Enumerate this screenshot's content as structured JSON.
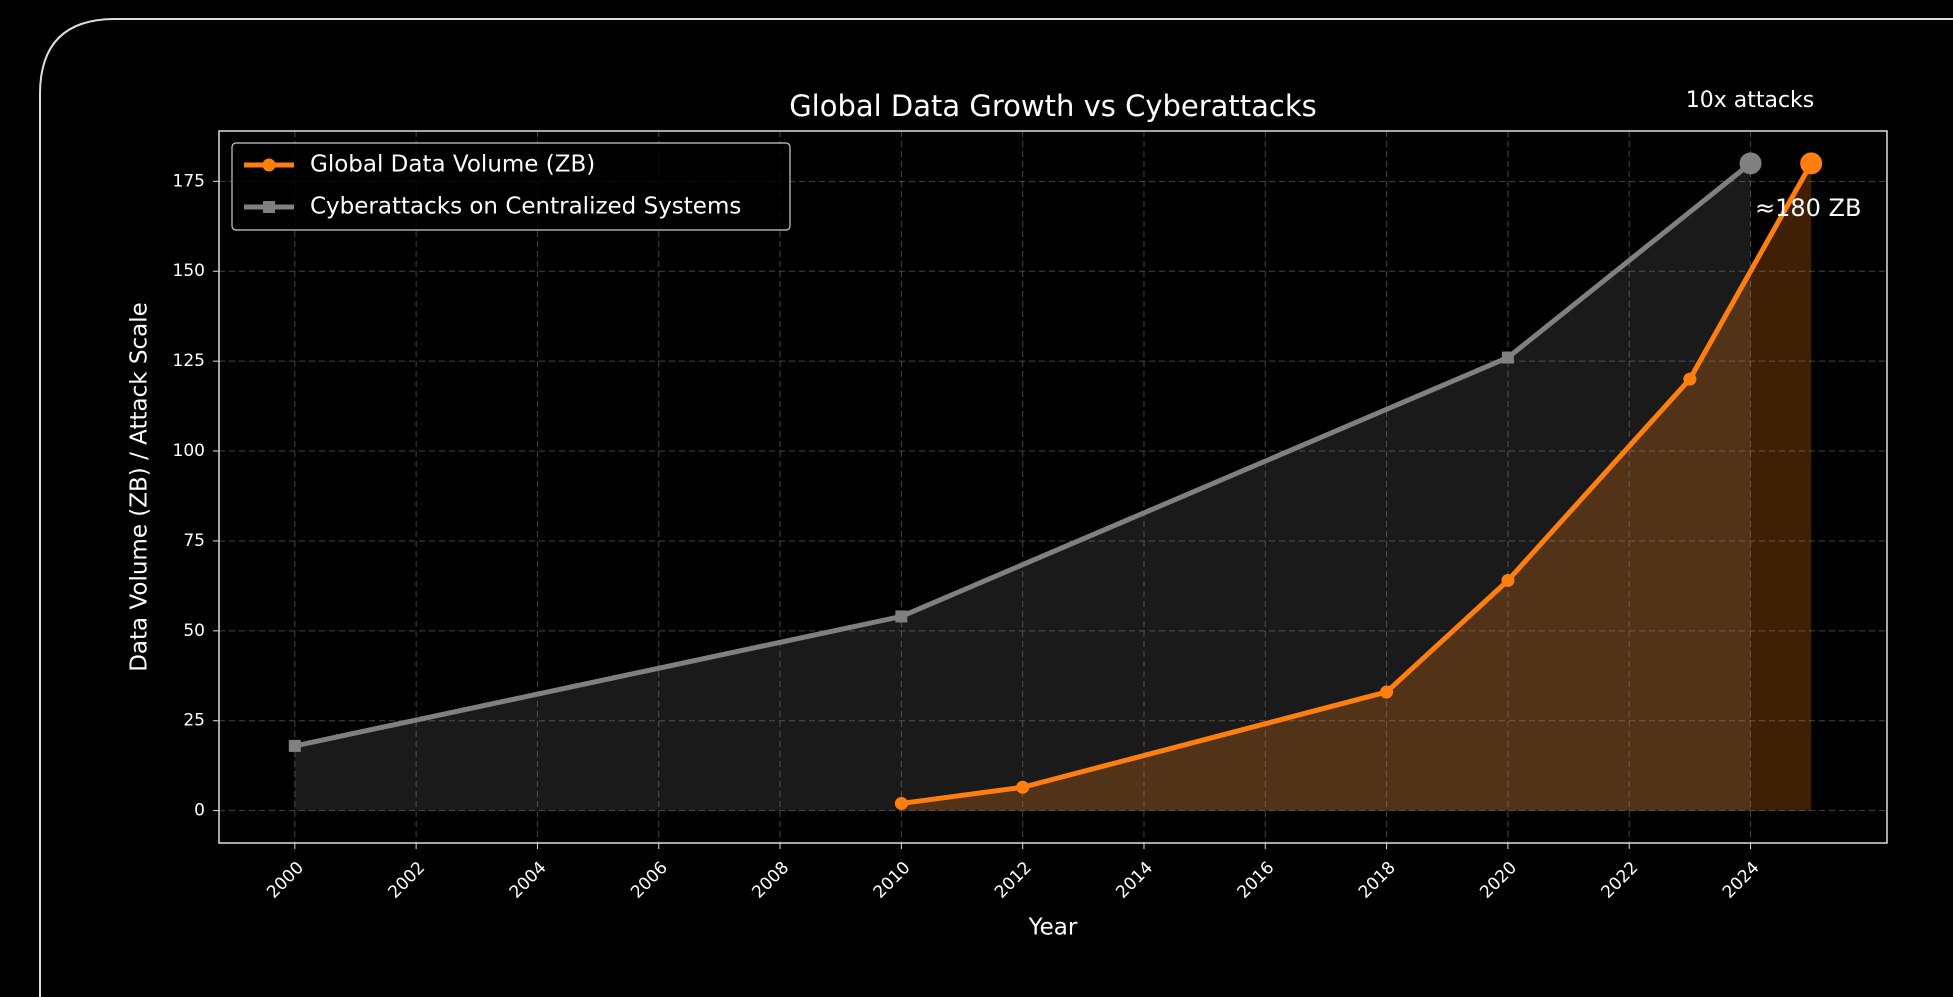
{
  "chart_data": {
    "type": "line",
    "title": "Global Data Growth vs Cyberattacks",
    "xlabel": "Year",
    "ylabel": "Data Volume (ZB) / Attack Scale",
    "annotations": [
      "10x attacks",
      "≈180 ZB"
    ],
    "series": [
      {
        "name": "Global Data Volume (ZB)",
        "color": "#ff7f0e",
        "marker": "circle",
        "x": [
          2010,
          2012,
          2018,
          2020,
          2023,
          2025
        ],
        "values": [
          2,
          6.5,
          33,
          64,
          120,
          180
        ]
      },
      {
        "name": "Cyberattacks on Centralized Systems",
        "color": "#808080",
        "marker": "square",
        "x": [
          2000,
          2010,
          2020,
          2024
        ],
        "values": [
          18,
          54,
          126,
          180
        ]
      }
    ],
    "xlim": [
      1998.75,
      2026.25
    ],
    "xticks": [
      2000,
      2002,
      2004,
      2006,
      2008,
      2010,
      2012,
      2014,
      2016,
      2018,
      2020,
      2022,
      2024
    ],
    "ylim": [
      -9,
      189
    ],
    "yticks": [
      0,
      25,
      50,
      75,
      100,
      125,
      150,
      175
    ],
    "grid": true,
    "legend": "upper left"
  }
}
